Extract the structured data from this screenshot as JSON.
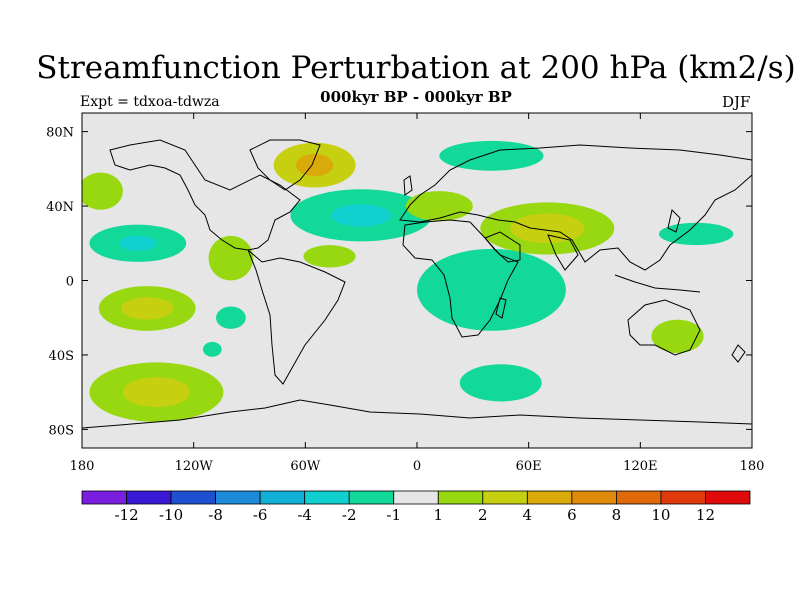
{
  "title": "Streamfunction Perturbation at 200 hPa (km2/s)",
  "subtitle": "000kyr BP - 000kyr BP",
  "experiment": "Expt = tdxoa-tdwza",
  "season": "DJF",
  "map": {
    "projection": "cylindrical-equidistant",
    "background_color": "#e6e6e6",
    "lon_range": [
      -180,
      180
    ],
    "lat_range": [
      -90,
      90
    ],
    "lat_ticks": [
      {
        "value": 80,
        "label": "80N"
      },
      {
        "value": 40,
        "label": "40N"
      },
      {
        "value": 0,
        "label": "0"
      },
      {
        "value": -40,
        "label": "40S"
      },
      {
        "value": -80,
        "label": "80S"
      }
    ],
    "lon_ticks": [
      {
        "value": -180,
        "label": "180"
      },
      {
        "value": -120,
        "label": "120W"
      },
      {
        "value": -60,
        "label": "60W"
      },
      {
        "value": 0,
        "label": "0"
      },
      {
        "value": 60,
        "label": "60E"
      },
      {
        "value": 120,
        "label": "120E"
      },
      {
        "value": 180,
        "label": "180"
      }
    ]
  },
  "colorbar": {
    "colors": [
      "#7a1fe0",
      "#3a19d6",
      "#1f50d0",
      "#1c8ad8",
      "#10b0d6",
      "#10cfcf",
      "#12d89a",
      "#e6e6e6",
      "#98d810",
      "#c6cf10",
      "#d9aa0a",
      "#e08a0a",
      "#e06a0a",
      "#e03a0a",
      "#e00a0a"
    ],
    "labels": [
      "-12",
      "-10",
      "-8",
      "-6",
      "-4",
      "-2",
      "-1",
      "1",
      "2",
      "4",
      "6",
      "8",
      "10",
      "12"
    ]
  },
  "chart_data": {
    "type": "map",
    "title": "Streamfunction Perturbation at 200 hPa (km2/s)",
    "subtitle": "000kyr BP - 000kyr BP",
    "variable": "streamfunction perturbation",
    "units": "km2/s",
    "level": "200 hPa",
    "season": "DJF",
    "contour_levels": [
      -12,
      -10,
      -8,
      -6,
      -4,
      -2,
      -1,
      1,
      2,
      4,
      6,
      8,
      10,
      12
    ],
    "anomaly_regions": [
      {
        "region": "Greenland / Labrador",
        "lon": -55,
        "lat": 62,
        "rlon": 22,
        "rlat": 12,
        "category": "2 to 4",
        "inner": {
          "rlon": 10,
          "rlat": 6,
          "category": "4 to 6"
        }
      },
      {
        "region": "North Atlantic",
        "lon": -30,
        "lat": 35,
        "rlon": 38,
        "rlat": 14,
        "category": "-2 to -1",
        "inner": {
          "rlon": 16,
          "rlat": 6,
          "category": "-4 to -2"
        }
      },
      {
        "region": "Scandinavia / Arctic",
        "lon": 40,
        "lat": 67,
        "rlon": 28,
        "rlat": 8,
        "category": "-2 to -1"
      },
      {
        "region": "Mediterranean",
        "lon": 12,
        "lat": 40,
        "rlon": 18,
        "rlat": 8,
        "category": "1 to 2"
      },
      {
        "region": "South Asia",
        "lon": 70,
        "lat": 28,
        "rlon": 36,
        "rlat": 14,
        "category": "1 to 2",
        "inner": {
          "rlon": 20,
          "rlat": 8,
          "category": "2 to 4"
        }
      },
      {
        "region": "East Africa / Indian Ocean",
        "lon": 40,
        "lat": -5,
        "rlon": 40,
        "rlat": 22,
        "category": "-2 to -1"
      },
      {
        "region": "Southern Ocean Indian sector",
        "lon": 45,
        "lat": -55,
        "rlon": 22,
        "rlat": 10,
        "category": "-2 to -1"
      },
      {
        "region": "Australia",
        "lon": 140,
        "lat": -30,
        "rlon": 14,
        "rlat": 9,
        "category": "1 to 2"
      },
      {
        "region": "West Pacific",
        "lon": 150,
        "lat": 25,
        "rlon": 20,
        "rlat": 6,
        "category": "-2 to -1"
      },
      {
        "region": "North Pacific east",
        "lon": -170,
        "lat": 48,
        "rlon": 12,
        "rlat": 10,
        "category": "1 to 2"
      },
      {
        "region": "Tropical East Pacific",
        "lon": -150,
        "lat": 20,
        "rlon": 26,
        "rlat": 10,
        "category": "-2 to -1",
        "inner": {
          "rlon": 10,
          "rlat": 4,
          "category": "-4 to -2"
        }
      },
      {
        "region": "South Pacific subtropics",
        "lon": -145,
        "lat": -15,
        "rlon": 26,
        "rlat": 12,
        "category": "1 to 2",
        "inner": {
          "rlon": 14,
          "rlat": 6,
          "category": "2 to 4"
        }
      },
      {
        "region": "South Pacific mid-latitudes",
        "lon": -140,
        "lat": -60,
        "rlon": 36,
        "rlat": 16,
        "category": "1 to 2",
        "inner": {
          "rlon": 18,
          "rlat": 8,
          "category": "2 to 4"
        }
      },
      {
        "region": "Caribbean / Mexico",
        "lon": -100,
        "lat": 12,
        "rlon": 12,
        "rlat": 12,
        "category": "1 to 2"
      },
      {
        "region": "Tropical Atlantic",
        "lon": -47,
        "lat": 13,
        "rlon": 14,
        "rlat": 6,
        "category": "1 to 2"
      },
      {
        "region": "Southeast Pacific",
        "lon": -100,
        "lat": -20,
        "rlon": 8,
        "rlat": 6,
        "category": "-2 to -1"
      },
      {
        "region": "South Pacific small",
        "lon": -110,
        "lat": -37,
        "rlon": 5,
        "rlat": 4,
        "category": "-2 to -1"
      }
    ]
  }
}
